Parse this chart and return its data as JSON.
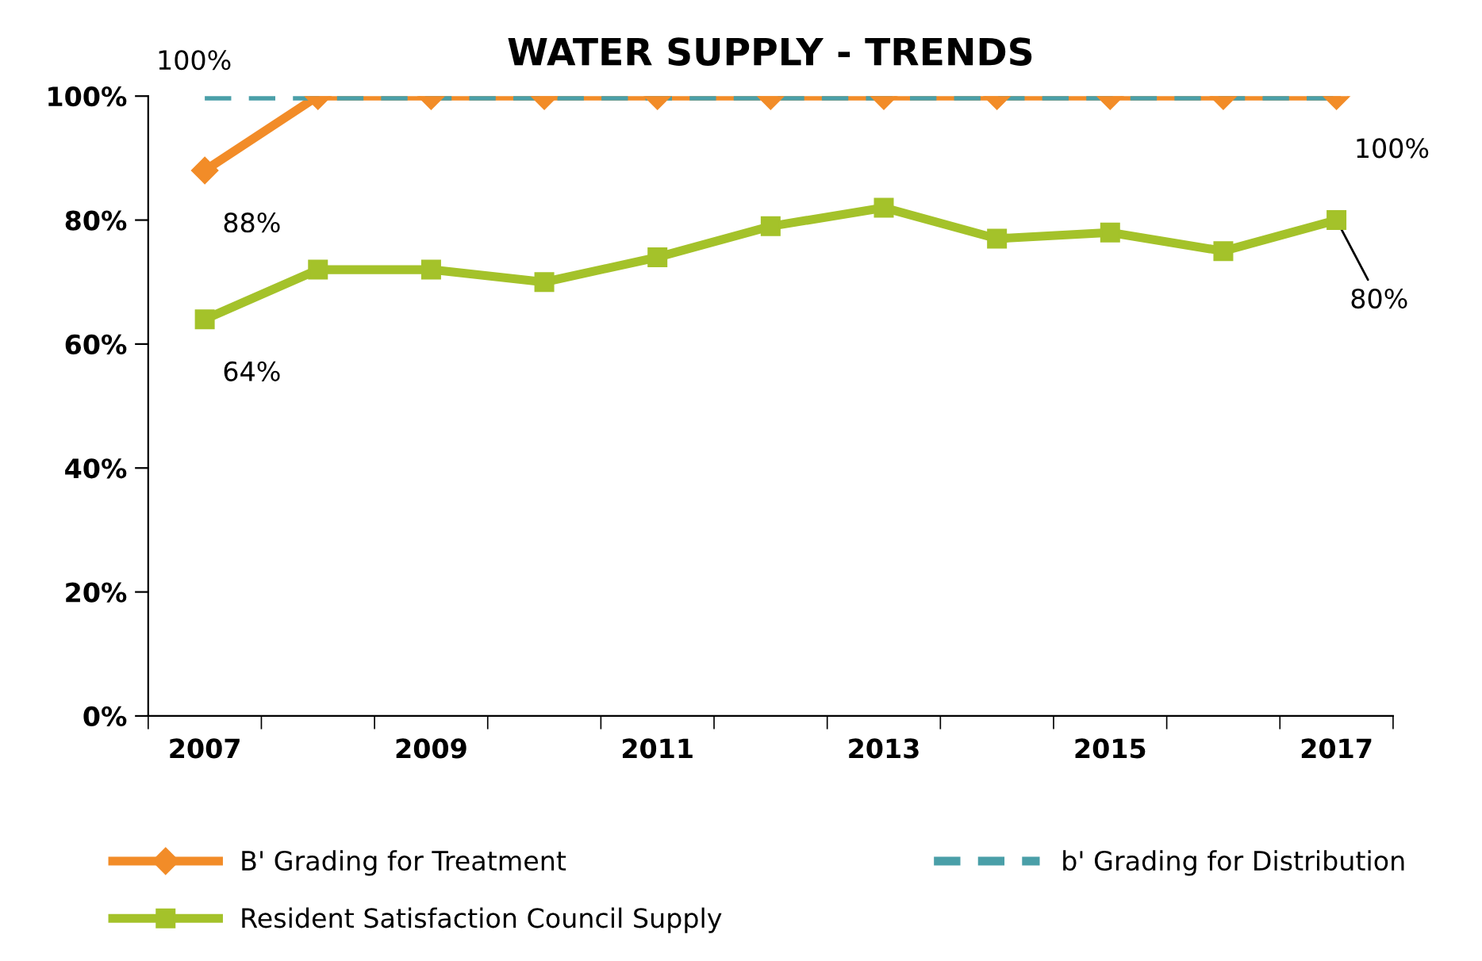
{
  "chart_data": {
    "type": "line",
    "title": "WATER SUPPLY - TRENDS",
    "categories": [
      "2007",
      null,
      "2009",
      null,
      "2011",
      null,
      "2013",
      null,
      "2015",
      null,
      "2017"
    ],
    "ylim": [
      0,
      100
    ],
    "yticks": [
      {
        "value": 0,
        "label": "0%"
      },
      {
        "value": 20,
        "label": "20%"
      },
      {
        "value": 40,
        "label": "40%"
      },
      {
        "value": 60,
        "label": "60%"
      },
      {
        "value": 80,
        "label": "80%"
      },
      {
        "value": 100,
        "label": "100%"
      }
    ],
    "grid": false,
    "legend": "bottom",
    "series": [
      {
        "name": "B' Grading for Treatment",
        "color": "#f28c28",
        "marker": "diamond",
        "line_style": "solid",
        "values": [
          88,
          100,
          100,
          100,
          100,
          100,
          100,
          100,
          100,
          100,
          100
        ],
        "value_labels": [
          "88%",
          null,
          null,
          null,
          null,
          null,
          null,
          null,
          null,
          null,
          "100%"
        ]
      },
      {
        "name": "b' Grading for Distribution",
        "color": "#4a9fa8",
        "marker": "none",
        "line_style": "dashed",
        "values": [
          100,
          100,
          100,
          100,
          100,
          100,
          100,
          100,
          100,
          100,
          100
        ],
        "value_labels": [
          "100%",
          null,
          null,
          null,
          null,
          null,
          null,
          null,
          null,
          null,
          null
        ]
      },
      {
        "name": "Resident Satisfaction Council Supply",
        "color": "#a4c22a",
        "marker": "square",
        "line_style": "solid",
        "values": [
          64,
          72,
          72,
          70,
          74,
          79,
          82,
          77,
          78,
          75,
          80
        ],
        "value_labels": [
          "64%",
          null,
          null,
          null,
          null,
          null,
          null,
          null,
          null,
          null,
          "80%"
        ]
      }
    ]
  }
}
